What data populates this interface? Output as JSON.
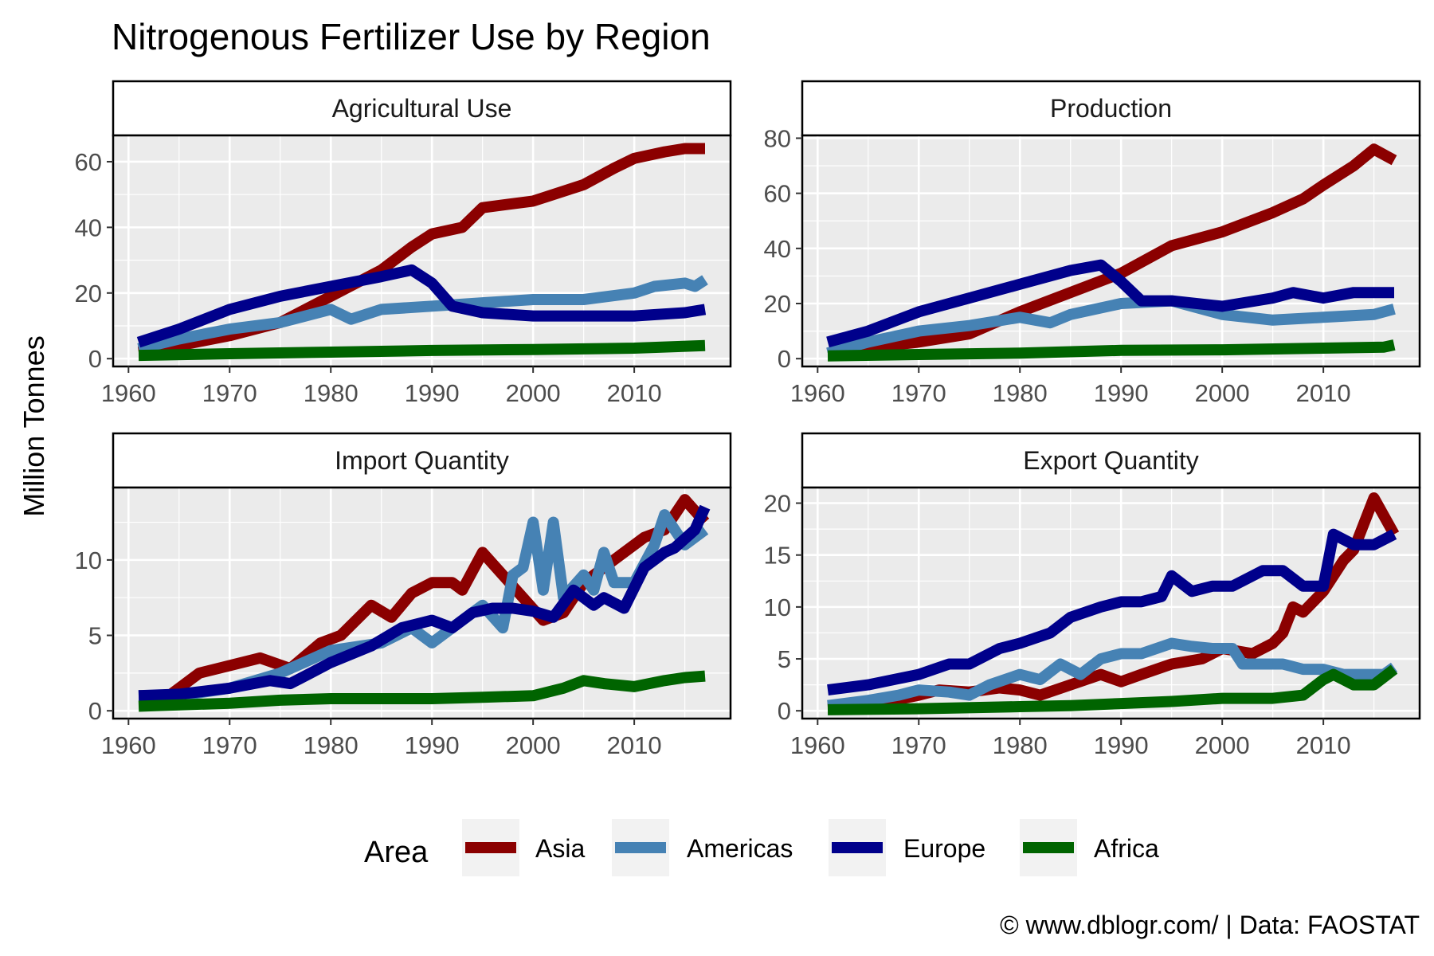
{
  "title": "Nitrogenous Fertilizer Use by Region",
  "ylabel": "Million Tonnes",
  "caption": "© www.dblogr.com/ | Data: FAOSTAT",
  "legend": {
    "title": "Area"
  },
  "colors": {
    "Asia": "#8b0000",
    "Americas": "#4682b4",
    "Europe": "#00008b",
    "Africa": "#006400"
  },
  "chart_data": [
    {
      "type": "line",
      "title": "Agricultural Use",
      "xlabel": "",
      "ylabel": "Million Tonnes",
      "xlim": [
        1961,
        2017
      ],
      "ylim": [
        0,
        68
      ],
      "x_ticks": [
        1960,
        1970,
        1980,
        1990,
        2000,
        2010
      ],
      "y_ticks": [
        0,
        20,
        40,
        60
      ],
      "series": [
        {
          "name": "Asia",
          "x": [
            1961,
            1965,
            1970,
            1975,
            1980,
            1985,
            1988,
            1990,
            1993,
            1995,
            2000,
            2005,
            2008,
            2010,
            2013,
            2015,
            2017
          ],
          "values": [
            2,
            4,
            7,
            11,
            19,
            27,
            34,
            38,
            40,
            46,
            48,
            53,
            58,
            61,
            63,
            64,
            64
          ]
        },
        {
          "name": "Americas",
          "x": [
            1961,
            1965,
            1970,
            1975,
            1980,
            1982,
            1985,
            1990,
            1995,
            2000,
            2005,
            2010,
            2012,
            2015,
            2016,
            2017
          ],
          "values": [
            3,
            6,
            9,
            11,
            15,
            12,
            15,
            16,
            17,
            18,
            18,
            20,
            22,
            23,
            22,
            24
          ]
        },
        {
          "name": "Europe",
          "x": [
            1961,
            1965,
            1970,
            1975,
            1980,
            1985,
            1988,
            1990,
            1992,
            1995,
            2000,
            2005,
            2010,
            2015,
            2017
          ],
          "values": [
            5,
            9,
            15,
            19,
            22,
            25,
            27,
            23,
            16,
            14,
            13,
            13,
            13,
            14,
            15
          ]
        },
        {
          "name": "Africa",
          "x": [
            1961,
            1970,
            1980,
            1990,
            2000,
            2010,
            2017
          ],
          "values": [
            1,
            1.5,
            2,
            2.5,
            2.8,
            3.2,
            4
          ]
        }
      ]
    },
    {
      "type": "line",
      "title": "Production",
      "xlabel": "",
      "ylabel": "Million Tonnes",
      "xlim": [
        1961,
        2017
      ],
      "ylim": [
        0,
        81
      ],
      "x_ticks": [
        1960,
        1970,
        1980,
        1990,
        2000,
        2010
      ],
      "y_ticks": [
        0,
        20,
        40,
        60,
        80
      ],
      "series": [
        {
          "name": "Asia",
          "x": [
            1961,
            1965,
            1970,
            1975,
            1980,
            1985,
            1990,
            1995,
            2000,
            2005,
            2008,
            2010,
            2013,
            2015,
            2017
          ],
          "values": [
            2,
            4,
            6,
            9,
            17,
            24,
            31,
            41,
            46,
            53,
            58,
            63,
            70,
            76,
            72
          ]
        },
        {
          "name": "Americas",
          "x": [
            1961,
            1965,
            1970,
            1975,
            1980,
            1983,
            1985,
            1990,
            1995,
            2000,
            2005,
            2010,
            2015,
            2017
          ],
          "values": [
            2,
            6,
            10,
            12,
            15,
            13,
            16,
            20,
            21,
            16,
            14,
            15,
            16,
            18
          ]
        },
        {
          "name": "Europe",
          "x": [
            1961,
            1965,
            1970,
            1975,
            1980,
            1985,
            1988,
            1990,
            1992,
            1995,
            2000,
            2005,
            2007,
            2010,
            2013,
            2015,
            2017
          ],
          "values": [
            6,
            10,
            17,
            22,
            27,
            32,
            34,
            28,
            21,
            21,
            19,
            22,
            24,
            22,
            24,
            24,
            24
          ]
        },
        {
          "name": "Africa",
          "x": [
            1961,
            1970,
            1980,
            1990,
            2000,
            2010,
            2016,
            2017
          ],
          "values": [
            1,
            1.5,
            2,
            3,
            3.2,
            3.8,
            4.2,
            5
          ]
        }
      ]
    },
    {
      "type": "line",
      "title": "Import Quantity",
      "xlabel": "",
      "ylabel": "Million Tonnes",
      "xlim": [
        1961,
        2017
      ],
      "ylim": [
        0,
        14.8
      ],
      "x_ticks": [
        1960,
        1970,
        1980,
        1990,
        2000,
        2010
      ],
      "y_ticks": [
        0,
        5,
        10
      ],
      "series": [
        {
          "name": "Asia",
          "x": [
            1961,
            1964,
            1967,
            1970,
            1973,
            1976,
            1979,
            1981,
            1984,
            1986,
            1988,
            1990,
            1992,
            1993,
            1995,
            1997,
            1999,
            2001,
            2003,
            2005,
            2007,
            2009,
            2011,
            2013,
            2015,
            2017
          ],
          "values": [
            1,
            1,
            2.5,
            3,
            3.5,
            2.8,
            4.5,
            5,
            7,
            6.2,
            7.8,
            8.5,
            8.5,
            8,
            10.5,
            9,
            7.5,
            6,
            6.5,
            8.5,
            9.5,
            10.5,
            11.5,
            12,
            14,
            12.5
          ]
        },
        {
          "name": "Americas",
          "x": [
            1961,
            1965,
            1970,
            1975,
            1980,
            1985,
            1988,
            1990,
            1993,
            1995,
            1997,
            1998,
            1999,
            2000,
            2001,
            2002,
            2003,
            2005,
            2006,
            2007,
            2008,
            2010,
            2012,
            2013,
            2015,
            2017
          ],
          "values": [
            1,
            1,
            1.5,
            2.5,
            4,
            4.5,
            5.5,
            4.5,
            6,
            7,
            5.5,
            9,
            9.5,
            12.5,
            8,
            12.5,
            7.5,
            9,
            8,
            10.5,
            8.5,
            8.5,
            11,
            13,
            11,
            12
          ]
        },
        {
          "name": "Europe",
          "x": [
            1961,
            1965,
            1970,
            1974,
            1976,
            1978,
            1980,
            1984,
            1987,
            1990,
            1992,
            1994,
            1996,
            1998,
            2000,
            2002,
            2004,
            2006,
            2007,
            2009,
            2011,
            2013,
            2014,
            2016,
            2017
          ],
          "values": [
            1,
            1.1,
            1.5,
            2,
            1.8,
            2.5,
            3.2,
            4.3,
            5.5,
            6,
            5.5,
            6.5,
            6.8,
            6.8,
            6.6,
            6.2,
            8,
            7,
            7.5,
            6.8,
            9.5,
            10.5,
            10.8,
            12,
            13.5
          ]
        },
        {
          "name": "Africa",
          "x": [
            1961,
            1970,
            1975,
            1980,
            1985,
            1990,
            1995,
            2000,
            2003,
            2005,
            2007,
            2010,
            2013,
            2015,
            2017
          ],
          "values": [
            0.3,
            0.5,
            0.7,
            0.8,
            0.8,
            0.8,
            0.9,
            1,
            1.5,
            2,
            1.8,
            1.6,
            2,
            2.2,
            2.3
          ]
        }
      ]
    },
    {
      "type": "line",
      "title": "Export Quantity",
      "xlabel": "",
      "ylabel": "Million Tonnes",
      "xlim": [
        1961,
        2017
      ],
      "ylim": [
        0,
        21.5
      ],
      "x_ticks": [
        1960,
        1970,
        1980,
        1990,
        2000,
        2010
      ],
      "y_ticks": [
        0,
        5,
        10,
        15,
        20
      ],
      "series": [
        {
          "name": "Asia",
          "x": [
            1961,
            1965,
            1970,
            1972,
            1975,
            1978,
            1980,
            1982,
            1985,
            1988,
            1990,
            1992,
            1995,
            1998,
            2000,
            2003,
            2005,
            2006,
            2007,
            2008,
            2010,
            2012,
            2013,
            2015,
            2017
          ],
          "values": [
            0.3,
            0.5,
            1.5,
            2,
            1.8,
            2.2,
            2,
            1.5,
            2.5,
            3.5,
            2.8,
            3.5,
            4.5,
            5,
            6,
            5.5,
            6.5,
            7.5,
            10,
            9.5,
            11.5,
            14.5,
            15.5,
            20.5,
            17
          ]
        },
        {
          "name": "Americas",
          "x": [
            1961,
            1965,
            1968,
            1970,
            1973,
            1975,
            1977,
            1980,
            1982,
            1984,
            1986,
            1988,
            1990,
            1992,
            1995,
            1997,
            1999,
            2001,
            2002,
            2004,
            2006,
            2008,
            2010,
            2012,
            2014,
            2016,
            2017
          ],
          "values": [
            0.5,
            1,
            1.5,
            2,
            1.8,
            1.5,
            2.5,
            3.5,
            3,
            4.5,
            3.5,
            5,
            5.5,
            5.5,
            6.5,
            6.2,
            6,
            6,
            4.5,
            4.5,
            4.5,
            4,
            4,
            3.5,
            3.5,
            3.5,
            4.2
          ]
        },
        {
          "name": "Europe",
          "x": [
            1961,
            1965,
            1970,
            1973,
            1975,
            1978,
            1980,
            1983,
            1985,
            1988,
            1990,
            1992,
            1994,
            1995,
            1997,
            1999,
            2001,
            2002,
            2004,
            2006,
            2008,
            2010,
            2011,
            2013,
            2015,
            2017
          ],
          "values": [
            2,
            2.5,
            3.5,
            4.5,
            4.5,
            6,
            6.5,
            7.5,
            9,
            10,
            10.5,
            10.5,
            11,
            13,
            11.5,
            12,
            12,
            12.5,
            13.5,
            13.5,
            12,
            12,
            17,
            16,
            16,
            17
          ]
        },
        {
          "name": "Africa",
          "x": [
            1961,
            1970,
            1980,
            1985,
            1990,
            1995,
            2000,
            2005,
            2008,
            2010,
            2011,
            2013,
            2015,
            2017
          ],
          "values": [
            0.1,
            0.2,
            0.4,
            0.5,
            0.7,
            0.9,
            1.2,
            1.2,
            1.5,
            3,
            3.5,
            2.5,
            2.5,
            4
          ]
        }
      ]
    }
  ]
}
